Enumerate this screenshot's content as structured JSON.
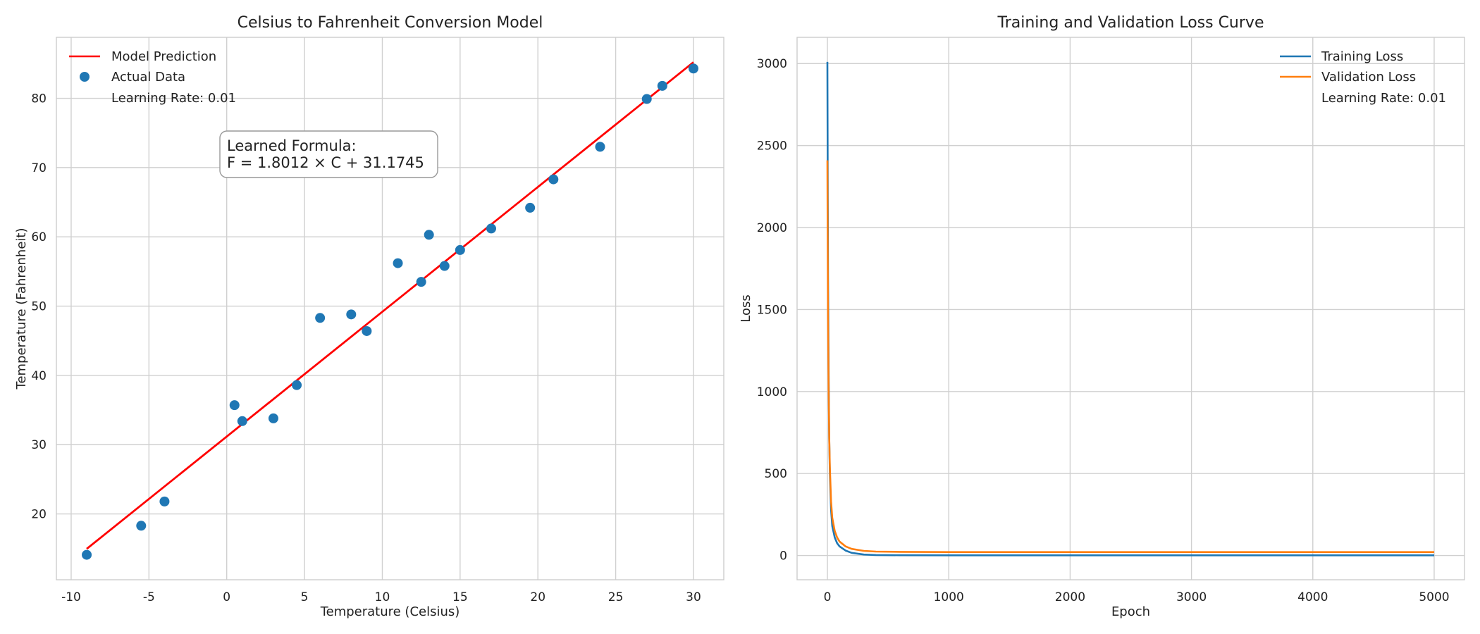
{
  "chart_data": [
    {
      "type": "scatter",
      "title": "Celsius to Fahrenheit Conversion Model",
      "xlabel": "Temperature (Celsius)",
      "ylabel": "Temperature (Fahrenheit)",
      "xlim": [
        -10.95,
        31.95
      ],
      "ylim": [
        10.5,
        88.8
      ],
      "xticks": [
        -10,
        -5,
        0,
        5,
        10,
        15,
        20,
        25,
        30
      ],
      "yticks": [
        20,
        30,
        40,
        50,
        60,
        70,
        80
      ],
      "grid": true,
      "legend_position": "top-left",
      "legend": {
        "prediction": "Model Prediction",
        "data": "Actual Data",
        "note": "Learning Rate: 0.01"
      },
      "annotation": {
        "line1": "Learned Formula:",
        "line2": "F = 1.8012 × C + 31.1745"
      },
      "colors": {
        "prediction": "#ff0000",
        "data": "#1f77b4"
      },
      "prediction_line": {
        "x": [
          -9,
          30
        ],
        "y": [
          14.96,
          85.21
        ]
      },
      "points": [
        {
          "x": -9,
          "y": 14.1
        },
        {
          "x": -5.5,
          "y": 18.3
        },
        {
          "x": -4,
          "y": 21.8
        },
        {
          "x": 0.5,
          "y": 35.7
        },
        {
          "x": 1,
          "y": 33.4
        },
        {
          "x": 3,
          "y": 33.8
        },
        {
          "x": 4.5,
          "y": 38.6
        },
        {
          "x": 6,
          "y": 48.3
        },
        {
          "x": 8,
          "y": 48.8
        },
        {
          "x": 9,
          "y": 46.4
        },
        {
          "x": 11,
          "y": 56.2
        },
        {
          "x": 12.5,
          "y": 53.5
        },
        {
          "x": 13,
          "y": 60.3
        },
        {
          "x": 14,
          "y": 55.8
        },
        {
          "x": 15,
          "y": 58.1
        },
        {
          "x": 17,
          "y": 61.2
        },
        {
          "x": 19.5,
          "y": 64.2
        },
        {
          "x": 21,
          "y": 68.3
        },
        {
          "x": 24,
          "y": 73.0
        },
        {
          "x": 27,
          "y": 79.9
        },
        {
          "x": 28,
          "y": 81.8
        },
        {
          "x": 30,
          "y": 84.3
        }
      ]
    },
    {
      "type": "line",
      "title": "Training and Validation Loss Curve",
      "xlabel": "Epoch",
      "ylabel": "Loss",
      "xlim": [
        -250,
        5250
      ],
      "ylim": [
        -148,
        3160
      ],
      "xticks": [
        0,
        1000,
        2000,
        3000,
        4000,
        5000
      ],
      "yticks": [
        0,
        500,
        1000,
        1500,
        2000,
        2500,
        3000
      ],
      "grid": true,
      "legend_position": "top-right",
      "legend_note": "Learning Rate: 0.01",
      "series": [
        {
          "name": "Training Loss",
          "color": "#1f77b4",
          "x": [
            0,
            2,
            5,
            10,
            15,
            20,
            30,
            40,
            60,
            80,
            100,
            150,
            200,
            300,
            400,
            600,
            1000,
            2000,
            3000,
            4000,
            5000
          ],
          "y": [
            3010,
            2400,
            1700,
            1100,
            720,
            500,
            280,
            180,
            110,
            75,
            55,
            30,
            16,
            6,
            3,
            1.5,
            1,
            1,
            1,
            1,
            1
          ]
        },
        {
          "name": "Validation Loss",
          "color": "#ff7f0e",
          "x": [
            0,
            2,
            5,
            10,
            15,
            20,
            30,
            40,
            60,
            80,
            100,
            150,
            200,
            300,
            400,
            600,
            1000,
            2000,
            3000,
            4000,
            5000
          ],
          "y": [
            2410,
            1950,
            1450,
            1000,
            720,
            540,
            330,
            230,
            150,
            110,
            85,
            55,
            40,
            28,
            24,
            22,
            21,
            21,
            21,
            21,
            21
          ]
        }
      ]
    }
  ]
}
